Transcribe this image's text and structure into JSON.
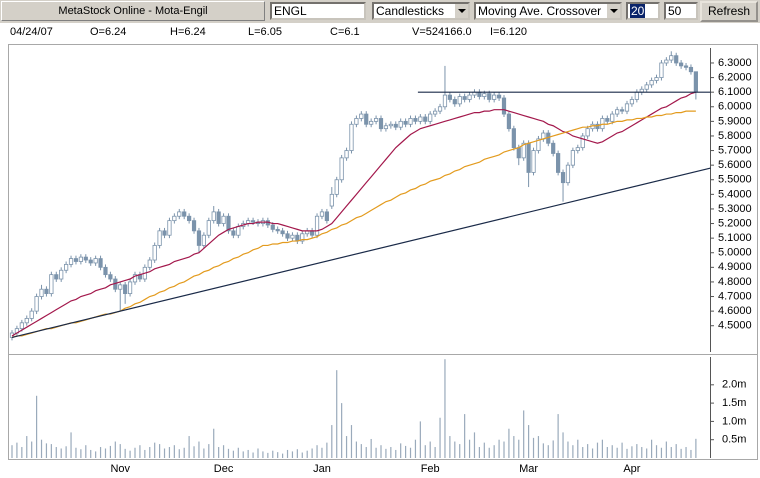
{
  "toolbar": {
    "title": "MetaStock Online - Mota-Engil",
    "symbol": "ENGL",
    "chart_style": "Candlesticks",
    "indicator": "Moving Ave. Crossover",
    "ma_short": 20,
    "ma_long": 50,
    "button": "Refresh"
  },
  "info": {
    "date": "04/24/07",
    "open": "O=6.24",
    "high": "H=6.24",
    "low": "L=6.05",
    "close": "C=6.1",
    "volume": "V=524166.0",
    "indicator": "I=6.120"
  },
  "chart_data": {
    "type": "candlestick",
    "color": "#7b93ab",
    "categories": [
      null,
      null,
      null,
      null,
      null,
      null,
      null,
      null,
      null,
      null,
      null,
      null,
      null,
      null,
      null,
      null,
      null,
      null,
      null,
      null,
      null,
      null,
      "Nov",
      null,
      null,
      null,
      null,
      null,
      null,
      null,
      null,
      null,
      null,
      null,
      null,
      null,
      null,
      null,
      null,
      null,
      null,
      null,
      null,
      "Dec",
      null,
      null,
      null,
      null,
      null,
      null,
      null,
      null,
      null,
      null,
      null,
      null,
      null,
      null,
      null,
      null,
      null,
      null,
      null,
      "Jan",
      null,
      null,
      null,
      null,
      null,
      null,
      null,
      null,
      null,
      null,
      null,
      null,
      null,
      null,
      null,
      null,
      null,
      null,
      null,
      null,
      null,
      "Feb",
      null,
      null,
      null,
      null,
      null,
      null,
      null,
      null,
      null,
      null,
      null,
      null,
      null,
      null,
      null,
      null,
      null,
      null,
      null,
      "Mar",
      null,
      null,
      null,
      null,
      null,
      null,
      null,
      null,
      null,
      null,
      null,
      null,
      null,
      null,
      null,
      null,
      null,
      null,
      null,
      null,
      "Apr",
      null,
      null,
      null,
      null,
      null,
      null,
      null,
      null,
      null,
      null,
      null,
      null,
      null
    ],
    "open": [
      4.42,
      4.45,
      4.48,
      4.52,
      4.55,
      4.6,
      4.7,
      4.75,
      4.72,
      4.85,
      4.82,
      4.88,
      4.92,
      4.96,
      4.94,
      4.97,
      4.95,
      4.93,
      4.96,
      4.9,
      4.85,
      4.82,
      4.75,
      4.78,
      4.72,
      4.8,
      4.85,
      4.82,
      4.9,
      4.95,
      5.05,
      5.15,
      5.12,
      5.22,
      5.25,
      5.28,
      5.25,
      5.22,
      5.15,
      5.05,
      5.12,
      5.22,
      5.28,
      5.2,
      5.25,
      5.15,
      5.12,
      5.18,
      5.2,
      5.22,
      5.21,
      5.2,
      5.22,
      5.19,
      5.16,
      5.15,
      5.13,
      5.1,
      5.12,
      5.08,
      5.13,
      5.15,
      5.12,
      5.25,
      5.28,
      5.32,
      5.4,
      5.5,
      5.65,
      5.7,
      5.88,
      5.92,
      5.95,
      5.88,
      5.9,
      5.92,
      5.85,
      5.87,
      5.88,
      5.86,
      5.9,
      5.88,
      5.92,
      5.9,
      5.93,
      5.9,
      5.95,
      5.97,
      6.0,
      6.08,
      6.05,
      6.02,
      6.07,
      6.05,
      6.08,
      6.1,
      6.07,
      6.09,
      6.05,
      6.08,
      6.06,
      5.95,
      5.85,
      5.72,
      5.65,
      5.75,
      5.55,
      5.7,
      5.78,
      5.82,
      5.75,
      5.68,
      5.55,
      5.48,
      5.6,
      5.7,
      5.72,
      5.8,
      5.85,
      5.88,
      5.85,
      5.92,
      5.9,
      5.95,
      5.98,
      5.97,
      6.02,
      6.05,
      6.1,
      6.12,
      6.15,
      6.18,
      6.2,
      6.3,
      6.32,
      6.35,
      6.3,
      6.28,
      6.27,
      6.24
    ],
    "high": [
      4.47,
      4.5,
      4.54,
      4.57,
      4.62,
      4.72,
      4.78,
      4.77,
      4.87,
      4.87,
      4.9,
      4.94,
      4.98,
      4.98,
      4.99,
      4.99,
      4.97,
      4.98,
      4.98,
      4.92,
      4.87,
      4.84,
      4.8,
      4.8,
      4.82,
      4.87,
      4.87,
      4.92,
      4.97,
      5.07,
      5.17,
      5.17,
      5.24,
      5.27,
      5.3,
      5.3,
      5.27,
      5.24,
      5.17,
      5.14,
      5.24,
      5.32,
      5.3,
      5.27,
      5.27,
      5.17,
      5.2,
      5.22,
      5.24,
      5.24,
      5.23,
      5.24,
      5.24,
      5.21,
      5.18,
      5.17,
      5.15,
      5.14,
      5.14,
      5.15,
      5.17,
      5.17,
      5.27,
      5.3,
      5.3,
      5.45,
      5.52,
      5.67,
      5.72,
      5.9,
      5.94,
      5.97,
      5.97,
      5.92,
      5.94,
      5.94,
      5.89,
      5.9,
      5.9,
      5.92,
      5.92,
      5.94,
      5.94,
      5.95,
      5.95,
      5.97,
      5.99,
      6.02,
      6.28,
      6.1,
      6.07,
      6.09,
      6.09,
      6.1,
      6.12,
      6.12,
      6.11,
      6.11,
      6.1,
      6.1,
      6.08,
      5.97,
      5.87,
      5.74,
      5.77,
      5.77,
      5.72,
      5.8,
      5.84,
      5.84,
      5.77,
      5.7,
      5.57,
      5.62,
      5.72,
      5.74,
      5.82,
      5.87,
      5.9,
      5.9,
      5.94,
      5.94,
      5.97,
      6.0,
      6.0,
      6.04,
      6.07,
      6.12,
      6.14,
      6.17,
      6.2,
      6.22,
      6.32,
      6.34,
      6.38,
      6.37,
      6.32,
      6.3,
      6.29,
      6.24
    ],
    "low": [
      4.4,
      4.43,
      4.46,
      4.5,
      4.53,
      4.58,
      4.68,
      4.7,
      4.7,
      4.8,
      4.8,
      4.86,
      4.9,
      4.92,
      4.92,
      4.93,
      4.91,
      4.91,
      4.88,
      4.83,
      4.8,
      4.73,
      4.6,
      4.65,
      4.7,
      4.78,
      4.8,
      4.8,
      4.88,
      4.93,
      5.03,
      5.1,
      5.1,
      5.2,
      5.23,
      5.23,
      5.2,
      5.13,
      5.0,
      5.03,
      5.1,
      5.2,
      5.18,
      5.18,
      5.13,
      5.1,
      5.1,
      5.16,
      5.18,
      5.19,
      5.18,
      5.18,
      5.17,
      5.14,
      5.13,
      5.11,
      5.08,
      5.08,
      5.06,
      5.06,
      5.11,
      5.1,
      5.1,
      5.23,
      5.2,
      5.3,
      5.38,
      5.48,
      5.63,
      5.68,
      5.86,
      5.9,
      5.86,
      5.86,
      5.88,
      5.83,
      5.83,
      5.85,
      5.84,
      5.84,
      5.86,
      5.86,
      5.88,
      5.88,
      5.88,
      5.88,
      5.93,
      5.95,
      5.98,
      6.03,
      6.0,
      6.0,
      6.03,
      6.03,
      6.06,
      6.05,
      6.05,
      6.03,
      6.03,
      6.04,
      5.93,
      5.83,
      5.7,
      5.6,
      5.63,
      5.45,
      5.53,
      5.68,
      5.76,
      5.73,
      5.66,
      5.53,
      5.35,
      5.46,
      5.58,
      5.68,
      5.7,
      5.78,
      5.83,
      5.83,
      5.83,
      5.88,
      5.88,
      5.93,
      5.95,
      5.95,
      6.0,
      6.03,
      6.08,
      6.1,
      6.13,
      6.16,
      6.18,
      6.28,
      6.3,
      6.28,
      6.26,
      6.25,
      6.22,
      6.05
    ],
    "close": [
      4.45,
      4.48,
      4.52,
      4.55,
      4.6,
      4.7,
      4.75,
      4.72,
      4.85,
      4.82,
      4.88,
      4.92,
      4.96,
      4.94,
      4.97,
      4.95,
      4.93,
      4.96,
      4.9,
      4.85,
      4.82,
      4.75,
      4.78,
      4.72,
      4.8,
      4.85,
      4.82,
      4.9,
      4.95,
      5.05,
      5.15,
      5.12,
      5.22,
      5.25,
      5.28,
      5.25,
      5.22,
      5.15,
      5.05,
      5.12,
      5.22,
      5.28,
      5.2,
      5.25,
      5.15,
      5.12,
      5.18,
      5.2,
      5.22,
      5.21,
      5.2,
      5.22,
      5.19,
      5.16,
      5.15,
      5.13,
      5.1,
      5.12,
      5.08,
      5.13,
      5.15,
      5.12,
      5.25,
      5.28,
      5.22,
      5.4,
      5.5,
      5.65,
      5.7,
      5.88,
      5.92,
      5.95,
      5.88,
      5.9,
      5.92,
      5.85,
      5.87,
      5.88,
      5.86,
      5.9,
      5.88,
      5.92,
      5.9,
      5.93,
      5.9,
      5.95,
      5.97,
      6.0,
      6.08,
      6.05,
      6.02,
      6.07,
      6.05,
      6.08,
      6.1,
      6.07,
      6.09,
      6.05,
      6.08,
      6.06,
      5.95,
      5.85,
      5.72,
      5.65,
      5.75,
      5.55,
      5.7,
      5.78,
      5.82,
      5.75,
      5.68,
      5.55,
      5.48,
      5.6,
      5.7,
      5.72,
      5.8,
      5.85,
      5.88,
      5.85,
      5.92,
      5.9,
      5.95,
      5.98,
      5.97,
      6.02,
      6.05,
      6.1,
      6.12,
      6.15,
      6.18,
      6.2,
      6.3,
      6.32,
      6.35,
      6.3,
      6.28,
      6.27,
      6.24,
      6.1
    ],
    "moving_averages": [
      {
        "color": "#a3184c",
        "values": [
          4.43,
          4.45,
          4.47,
          4.49,
          4.51,
          4.53,
          4.55,
          4.57,
          4.59,
          4.61,
          4.63,
          4.65,
          4.67,
          4.68,
          4.7,
          4.71,
          4.72,
          4.74,
          4.75,
          4.76,
          4.78,
          4.79,
          4.8,
          4.81,
          4.82,
          4.84,
          4.85,
          4.86,
          4.87,
          4.89,
          4.9,
          4.91,
          4.92,
          4.94,
          4.95,
          4.96,
          4.97,
          4.99,
          5.0,
          5.03,
          5.06,
          5.09,
          5.12,
          5.14,
          5.16,
          5.17,
          5.18,
          5.19,
          5.2,
          5.2,
          5.21,
          5.21,
          5.21,
          5.2,
          5.2,
          5.19,
          5.18,
          5.17,
          5.16,
          5.15,
          5.15,
          5.15,
          5.15,
          5.16,
          5.18,
          5.2,
          5.24,
          5.28,
          5.32,
          5.36,
          5.4,
          5.44,
          5.48,
          5.52,
          5.56,
          5.6,
          5.64,
          5.68,
          5.72,
          5.75,
          5.78,
          5.81,
          5.83,
          5.85,
          5.86,
          5.87,
          5.88,
          5.89,
          5.9,
          5.91,
          5.92,
          5.93,
          5.94,
          5.95,
          5.96,
          5.96,
          5.97,
          5.97,
          5.98,
          5.98,
          5.98,
          5.97,
          5.96,
          5.95,
          5.94,
          5.93,
          5.92,
          5.91,
          5.9,
          5.88,
          5.87,
          5.85,
          5.83,
          5.82,
          5.8,
          5.79,
          5.78,
          5.77,
          5.76,
          5.75,
          5.76,
          5.78,
          5.8,
          5.82,
          5.83,
          5.85,
          5.87,
          5.89,
          5.91,
          5.93,
          5.95,
          5.97,
          5.99,
          6.0,
          6.02,
          6.04,
          6.06,
          6.07,
          6.09,
          6.1
        ]
      },
      {
        "color": "#e39b1e",
        "values": [
          4.42,
          4.43,
          4.43,
          4.44,
          4.45,
          4.46,
          4.47,
          4.48,
          4.48,
          4.49,
          4.5,
          4.51,
          4.52,
          4.52,
          4.53,
          4.54,
          4.55,
          4.56,
          4.57,
          4.58,
          4.58,
          4.59,
          4.6,
          4.62,
          4.63,
          4.65,
          4.66,
          4.68,
          4.7,
          4.71,
          4.73,
          4.74,
          4.76,
          4.77,
          4.79,
          4.8,
          4.82,
          4.84,
          4.85,
          4.87,
          4.88,
          4.9,
          4.91,
          4.93,
          4.94,
          4.96,
          4.97,
          4.99,
          5.0,
          5.02,
          5.03,
          5.05,
          5.05,
          5.06,
          5.06,
          5.07,
          5.07,
          5.08,
          5.08,
          5.09,
          5.09,
          5.1,
          5.11,
          5.13,
          5.14,
          5.16,
          5.17,
          5.19,
          5.2,
          5.22,
          5.24,
          5.25,
          5.27,
          5.29,
          5.31,
          5.33,
          5.35,
          5.36,
          5.38,
          5.4,
          5.41,
          5.43,
          5.44,
          5.46,
          5.47,
          5.49,
          5.5,
          5.51,
          5.53,
          5.54,
          5.56,
          5.57,
          5.59,
          5.6,
          5.61,
          5.62,
          5.64,
          5.65,
          5.66,
          5.67,
          5.69,
          5.7,
          5.71,
          5.72,
          5.74,
          5.75,
          5.76,
          5.77,
          5.78,
          5.79,
          5.8,
          5.81,
          5.82,
          5.83,
          5.84,
          5.85,
          5.86,
          5.86,
          5.87,
          5.87,
          5.88,
          5.88,
          5.89,
          5.9,
          5.9,
          5.91,
          5.91,
          5.92,
          5.92,
          5.93,
          5.93,
          5.94,
          5.94,
          5.95,
          5.95,
          5.96,
          5.96,
          5.97,
          5.97,
          5.97
        ]
      }
    ],
    "lines": [
      {
        "color": "#1a2a48",
        "x": [
          0,
          142
        ],
        "y": [
          4.42,
          5.58
        ]
      },
      {
        "color": "#1a2a48",
        "x": [
          82.5,
          142
        ],
        "y": [
          6.1,
          6.1
        ]
      }
    ],
    "ylim": [
      4.32,
      6.43
    ],
    "yticks": [
      {
        "value": 4.5,
        "label": "4.5000"
      },
      {
        "value": 4.6,
        "label": "4.6000"
      },
      {
        "value": 4.7,
        "label": "4.7000"
      },
      {
        "value": 4.8,
        "label": "4.8000"
      },
      {
        "value": 4.9,
        "label": "4.9000"
      },
      {
        "value": 5.0,
        "label": "5.0000"
      },
      {
        "value": 5.1,
        "label": "5.1000"
      },
      {
        "value": 5.2,
        "label": "5.2000"
      },
      {
        "value": 5.3,
        "label": "5.3000"
      },
      {
        "value": 5.4,
        "label": "5.4000"
      },
      {
        "value": 5.5,
        "label": "5.5000"
      },
      {
        "value": 5.6,
        "label": "5.6000"
      },
      {
        "value": 5.7,
        "label": "5.7000"
      },
      {
        "value": 5.8,
        "label": "5.8000"
      },
      {
        "value": 5.9,
        "label": "5.9000"
      },
      {
        "value": 6.0,
        "label": "6.0000"
      },
      {
        "value": 6.1,
        "label": "6.1000"
      },
      {
        "value": 6.2,
        "label": "6.2000"
      },
      {
        "value": 6.3,
        "label": "6.3000"
      }
    ],
    "volume": {
      "color": "#9aaabb",
      "values": [
        350000,
        420000,
        300000,
        600000,
        450000,
        1700000,
        500000,
        400000,
        380000,
        300000,
        260000,
        320000,
        700000,
        280000,
        240000,
        350000,
        220000,
        180000,
        300000,
        260000,
        330000,
        450000,
        380000,
        250000,
        200000,
        280000,
        350000,
        220000,
        300000,
        420000,
        380000,
        260000,
        300000,
        350000,
        240000,
        280000,
        600000,
        320000,
        450000,
        260000,
        380000,
        800000,
        300000,
        350000,
        250000,
        200000,
        280000,
        180000,
        220000,
        150000,
        260000,
        180000,
        140000,
        200000,
        160000,
        120000,
        220000,
        180000,
        240000,
        150000,
        200000,
        260000,
        350000,
        280000,
        420000,
        900000,
        2400000,
        1500000,
        600000,
        900000,
        450000,
        380000,
        300000,
        520000,
        280000,
        350000,
        250000,
        300000,
        220000,
        400000,
        330000,
        280000,
        500000,
        1000000,
        350000,
        450000,
        300000,
        1100000,
        2700000,
        600000,
        450000,
        380000,
        1200000,
        500000,
        700000,
        300000,
        420000,
        280000,
        350000,
        500000,
        450000,
        800000,
        600000,
        500000,
        1300000,
        900000,
        550000,
        600000,
        400000,
        350000,
        480000,
        1200000,
        700000,
        450000,
        350000,
        500000,
        300000,
        380000,
        260000,
        420000,
        500000,
        300000,
        350000,
        280000,
        420000,
        250000,
        320000,
        380000,
        300000,
        260000,
        500000,
        350000,
        280000,
        450000,
        300000,
        380000,
        250000,
        300000,
        220000,
        524166
      ],
      "ylim": [
        0,
        2760000
      ],
      "yticks": [
        {
          "value": 500000,
          "label": "0.5m"
        },
        {
          "value": 1000000,
          "label": "1.0m"
        },
        {
          "value": 1500000,
          "label": "1.5m"
        },
        {
          "value": 2000000,
          "label": "2.0m"
        }
      ]
    }
  }
}
